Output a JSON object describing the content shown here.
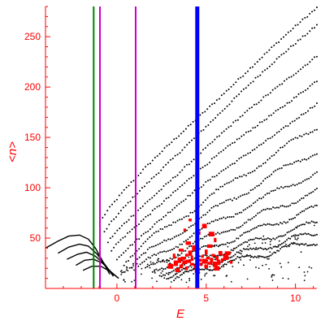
{
  "chart_data": {
    "type": "scatter",
    "title": "",
    "xlabel": "E",
    "ylabel": "<n>",
    "xlim": [
      -4,
      11.2
    ],
    "ylim": [
      0,
      280
    ],
    "x_ticks": [
      0,
      5,
      10
    ],
    "y_ticks": [
      50,
      100,
      150,
      200,
      250
    ],
    "axis_color": "#ff0000",
    "grid": false,
    "legend": "none",
    "vertical_lines": [
      {
        "x": -1.3,
        "color": "#008000",
        "width": 2
      },
      {
        "x": -0.95,
        "color": "#cc00cc",
        "width": 2
      },
      {
        "x": 1.05,
        "color": "#cc00cc",
        "width": 2
      },
      {
        "x": 4.5,
        "color": "#0000ff",
        "width": 5
      }
    ],
    "band_series": {
      "color": "#000000",
      "marker": "dot",
      "bands": [
        {
          "start": [
            -0.8,
            70
          ],
          "end": [
            11.2,
            278
          ]
        },
        {
          "start": [
            -0.7,
            55
          ],
          "end": [
            11.2,
            262
          ]
        },
        {
          "start": [
            -0.5,
            45
          ],
          "end": [
            11.2,
            232
          ]
        },
        {
          "start": [
            -0.3,
            38
          ],
          "end": [
            11.2,
            207
          ]
        },
        {
          "start": [
            0.0,
            30
          ],
          "end": [
            11.2,
            183
          ]
        },
        {
          "start": [
            0.4,
            26
          ],
          "end": [
            11.2,
            160
          ]
        },
        {
          "start": [
            0.8,
            22
          ],
          "end": [
            11.2,
            137
          ]
        },
        {
          "start": [
            1.2,
            20
          ],
          "end": [
            11.2,
            116
          ]
        },
        {
          "start": [
            1.6,
            18
          ],
          "end": [
            11.2,
            97
          ]
        },
        {
          "start": [
            2.0,
            16
          ],
          "end": [
            11.2,
            80
          ]
        },
        {
          "start": [
            2.4,
            14
          ],
          "end": [
            11.2,
            65
          ]
        },
        {
          "start": [
            2.8,
            12
          ],
          "end": [
            11.2,
            55
          ]
        },
        {
          "start": [
            3.2,
            10
          ],
          "end": [
            11.2,
            47
          ]
        }
      ]
    },
    "low_energy_curves": {
      "color": "#000000",
      "curves": [
        [
          [
            -4.0,
            40
          ],
          [
            -3.3,
            47
          ],
          [
            -2.7,
            52
          ],
          [
            -2.1,
            53
          ],
          [
            -1.6,
            49
          ],
          [
            -1.2,
            40
          ],
          [
            -0.8,
            27
          ],
          [
            -0.4,
            14
          ]
        ],
        [
          [
            -3.3,
            35
          ],
          [
            -2.7,
            41
          ],
          [
            -2.1,
            44
          ],
          [
            -1.6,
            42
          ],
          [
            -1.1,
            34
          ],
          [
            -0.6,
            22
          ],
          [
            -0.2,
            12
          ]
        ],
        [
          [
            -2.8,
            29
          ],
          [
            -2.2,
            34
          ],
          [
            -1.7,
            36
          ],
          [
            -1.2,
            32
          ],
          [
            -0.7,
            24
          ],
          [
            -0.2,
            13
          ]
        ],
        [
          [
            -2.3,
            23
          ],
          [
            -1.8,
            28
          ],
          [
            -1.3,
            29
          ],
          [
            -0.8,
            25
          ],
          [
            -0.3,
            16
          ],
          [
            0.1,
            10
          ]
        ],
        [
          [
            -1.9,
            18
          ],
          [
            -1.4,
            22
          ],
          [
            -0.9,
            22
          ],
          [
            -0.4,
            17
          ],
          [
            0.1,
            10
          ]
        ]
      ]
    },
    "red_points": {
      "color": "#ff0000",
      "points": [
        [
          3.3,
          25
        ],
        [
          3.5,
          28
        ],
        [
          3.6,
          22
        ],
        [
          3.7,
          30
        ],
        [
          3.8,
          26
        ],
        [
          3.9,
          33
        ],
        [
          3.9,
          20
        ],
        [
          4.0,
          27
        ],
        [
          4.1,
          35
        ],
        [
          4.2,
          24
        ],
        [
          4.2,
          30
        ],
        [
          4.3,
          40
        ],
        [
          4.0,
          45
        ],
        [
          3.6,
          38
        ],
        [
          3.4,
          18
        ],
        [
          4.4,
          22
        ],
        [
          4.6,
          28
        ],
        [
          4.7,
          24
        ],
        [
          4.8,
          32
        ],
        [
          4.9,
          27
        ],
        [
          5.0,
          22
        ],
        [
          5.0,
          36
        ],
        [
          5.1,
          30
        ],
        [
          5.2,
          25
        ],
        [
          5.2,
          42
        ],
        [
          5.3,
          28
        ],
        [
          5.4,
          33
        ],
        [
          5.5,
          24
        ],
        [
          5.5,
          48
        ],
        [
          5.6,
          30
        ],
        [
          5.7,
          26
        ],
        [
          5.8,
          35
        ],
        [
          5.9,
          28
        ],
        [
          6.1,
          31
        ],
        [
          6.4,
          26
        ],
        [
          4.1,
          68
        ],
        [
          4.6,
          55
        ],
        [
          5.3,
          54
        ],
        [
          3.8,
          58
        ],
        [
          4.9,
          62
        ],
        [
          3.0,
          22
        ],
        [
          3.2,
          32
        ],
        [
          6.2,
          35
        ],
        [
          4.5,
          18
        ],
        [
          5.6,
          20
        ]
      ]
    }
  }
}
